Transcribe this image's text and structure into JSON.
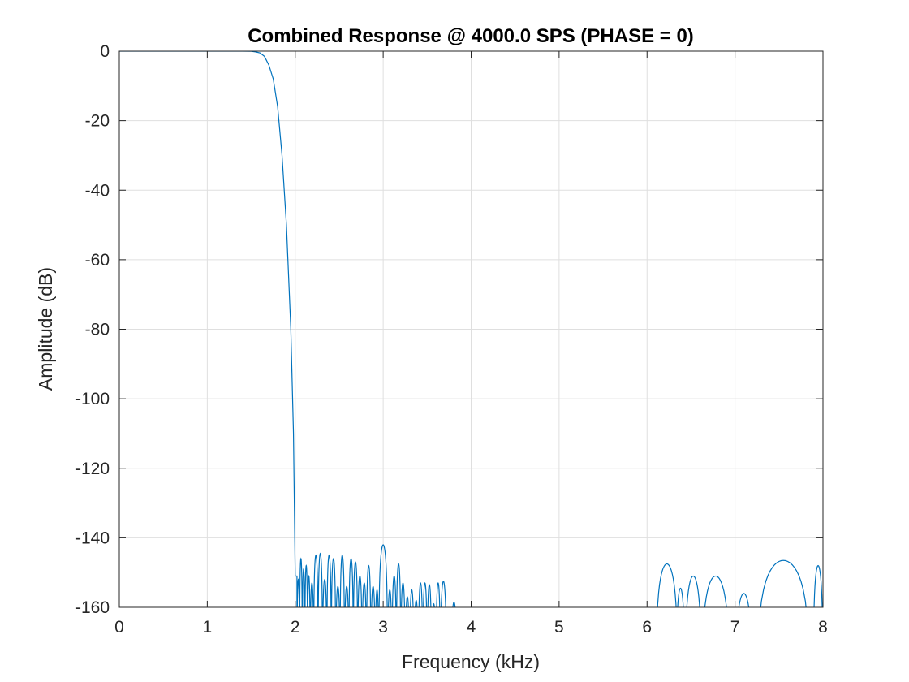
{
  "chart_data": {
    "type": "line",
    "title": "Combined Response @ 4000.0 SPS (PHASE = 0)",
    "xlabel": "Frequency (kHz)",
    "ylabel": "Amplitude (dB)",
    "xlim": [
      0,
      8
    ],
    "ylim": [
      -160,
      0
    ],
    "xticks": [
      0,
      1,
      2,
      3,
      4,
      5,
      6,
      7,
      8
    ],
    "yticks": [
      0,
      -20,
      -40,
      -60,
      -80,
      -100,
      -120,
      -140,
      -160
    ],
    "grid": true,
    "line_color": "#0072BD",
    "series": [
      {
        "passband": [
          [
            0,
            0
          ],
          [
            1.4,
            0
          ],
          [
            1.5,
            -0.05
          ],
          [
            1.55,
            -0.2
          ],
          [
            1.6,
            -0.5
          ],
          [
            1.65,
            -1.5
          ],
          [
            1.7,
            -4
          ],
          [
            1.75,
            -8
          ],
          [
            1.8,
            -16
          ],
          [
            1.85,
            -30
          ],
          [
            1.9,
            -50
          ],
          [
            1.95,
            -80
          ],
          [
            1.98,
            -110
          ],
          [
            2.0,
            -151
          ],
          [
            2.02,
            -151
          ]
        ],
        "lobes_near": [
          [
            2.02,
            2.05,
            -152
          ],
          [
            2.05,
            2.08,
            -146
          ],
          [
            2.08,
            2.11,
            -149
          ],
          [
            2.11,
            2.14,
            -148
          ],
          [
            2.14,
            2.17,
            -151
          ],
          [
            2.17,
            2.21,
            -153
          ],
          [
            2.21,
            2.26,
            -145
          ],
          [
            2.26,
            2.31,
            -144.5
          ],
          [
            2.31,
            2.36,
            -152
          ],
          [
            2.36,
            2.41,
            -145
          ],
          [
            2.41,
            2.46,
            -146
          ],
          [
            2.46,
            2.51,
            -154
          ],
          [
            2.51,
            2.56,
            -145
          ],
          [
            2.56,
            2.61,
            -154
          ],
          [
            2.61,
            2.66,
            -146
          ],
          [
            2.66,
            2.71,
            -147
          ],
          [
            2.71,
            2.76,
            -151
          ],
          [
            2.76,
            2.81,
            -153
          ],
          [
            2.81,
            2.86,
            -148
          ],
          [
            2.86,
            2.91,
            -154
          ],
          [
            2.91,
            2.95,
            -155
          ],
          [
            2.95,
            3.05,
            -142
          ],
          [
            3.05,
            3.1,
            -155
          ],
          [
            3.1,
            3.15,
            -151
          ],
          [
            3.15,
            3.2,
            -147.5
          ],
          [
            3.2,
            3.25,
            -153
          ],
          [
            3.25,
            3.3,
            -157
          ],
          [
            3.3,
            3.35,
            -155
          ],
          [
            3.35,
            3.4,
            -158
          ],
          [
            3.4,
            3.45,
            -153
          ],
          [
            3.45,
            3.5,
            -153
          ],
          [
            3.5,
            3.55,
            -153.5
          ],
          [
            3.55,
            3.6,
            -159
          ],
          [
            3.6,
            3.65,
            -153
          ],
          [
            3.65,
            3.72,
            -152.5
          ],
          [
            3.77,
            3.84,
            -158.5
          ]
        ],
        "lobes_far": [
          [
            6.1,
            6.35,
            -147.5
          ],
          [
            6.33,
            6.43,
            -154.5
          ],
          [
            6.43,
            6.62,
            -151
          ],
          [
            6.62,
            6.94,
            -151
          ],
          [
            7.0,
            7.2,
            -156
          ],
          [
            7.25,
            7.85,
            -146.5
          ],
          [
            7.89,
            8.0,
            -148
          ]
        ]
      }
    ]
  }
}
